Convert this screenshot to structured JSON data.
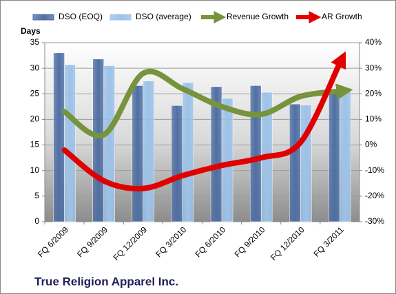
{
  "chart_data": {
    "type": "bar-line",
    "title": "True Religion Apparel Inc.",
    "y_label": "Days",
    "categories": [
      "FQ 6/2009",
      "FQ 9/2009",
      "FQ 12/2009",
      "FQ 3/2010",
      "FQ 6/2010",
      "FQ 9/2010",
      "FQ 12/2010",
      "FQ 3/2011"
    ],
    "series": [
      {
        "name": "DSO (EOQ)",
        "type": "bar",
        "color": "#4f6fa3",
        "values": [
          33,
          31.8,
          26.6,
          22.7,
          26.4,
          26.6,
          23,
          25
        ]
      },
      {
        "name": "DSO (average)",
        "type": "bar",
        "color": "#9cc2e8",
        "values": [
          30.7,
          30.5,
          27.5,
          27.2,
          24.1,
          25.3,
          22.8,
          26
        ]
      },
      {
        "name": "Revenue Growth",
        "type": "line",
        "axis": "y2",
        "color": "#77933c",
        "values": [
          13,
          4,
          28,
          22,
          15,
          12,
          19,
          21
        ]
      },
      {
        "name": "AR Growth",
        "type": "line",
        "axis": "y2",
        "color": "#e00000",
        "values": [
          -2,
          -14,
          -17,
          -12,
          -8,
          -5,
          1,
          32
        ]
      }
    ],
    "ylim": [
      0,
      35
    ],
    "yticks": [
      0,
      5,
      10,
      15,
      20,
      25,
      30,
      35
    ],
    "y2lim": [
      -30,
      40
    ],
    "y2ticks": [
      {
        "value": -30,
        "label": "-30%"
      },
      {
        "value": -20,
        "label": "-20%"
      },
      {
        "value": -10,
        "label": "-10%"
      },
      {
        "value": 0,
        "label": "0%"
      },
      {
        "value": 10,
        "label": "10%"
      },
      {
        "value": 20,
        "label": "20%"
      },
      {
        "value": 30,
        "label": "30%"
      },
      {
        "value": 40,
        "label": "40%"
      }
    ],
    "grid": true
  }
}
